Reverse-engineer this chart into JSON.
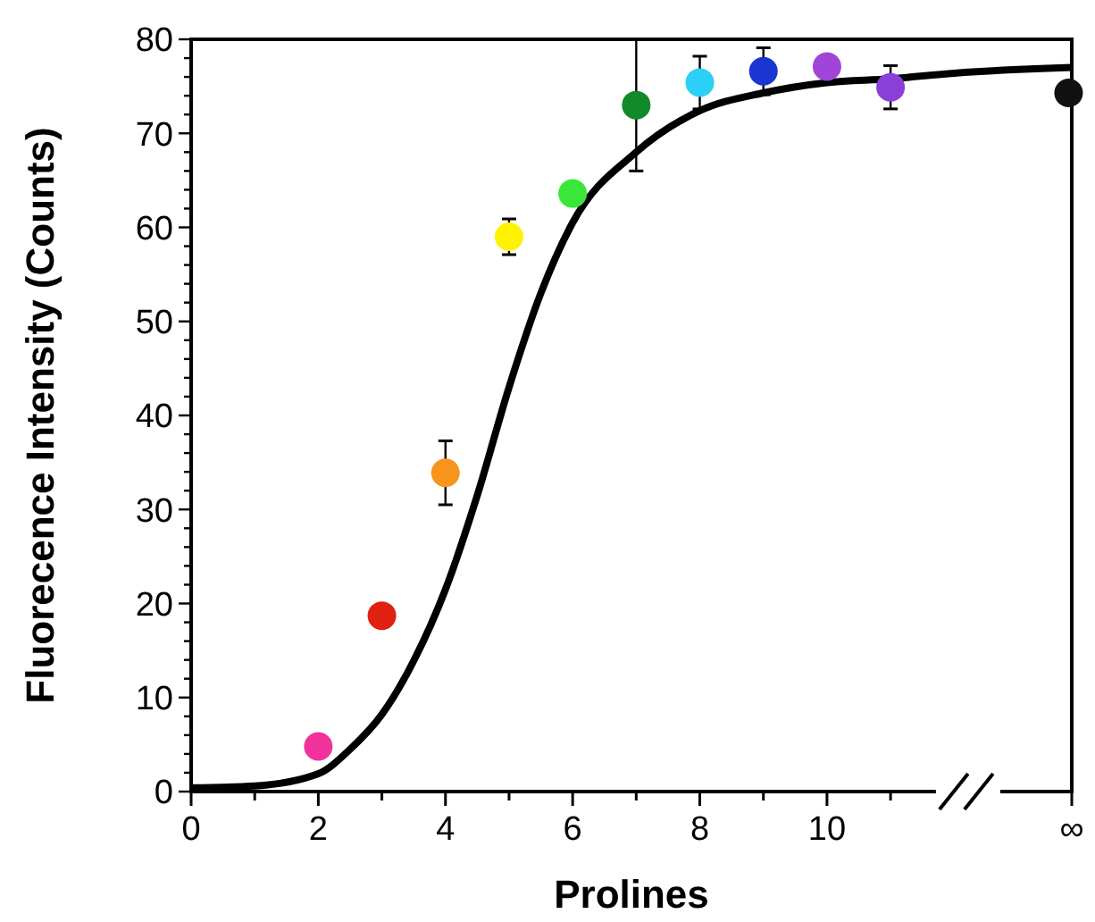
{
  "chart_data": {
    "type": "scatter",
    "xlabel": "Prolines",
    "ylabel": "Fluorecence Intensity (Counts)",
    "xlim": [
      0,
      13.85
    ],
    "ylim": [
      0,
      80
    ],
    "xticks": [
      0,
      {
        "value": 1,
        "label": null
      },
      2,
      {
        "value": 3,
        "label": null
      },
      4,
      {
        "value": 5,
        "label": null
      },
      6,
      {
        "value": 7,
        "label": null
      },
      8,
      {
        "value": 9,
        "label": null
      },
      10,
      {
        "value": 11,
        "label": null
      },
      {
        "value": 13.85,
        "label": "∞"
      }
    ],
    "yticks": [
      0,
      {
        "value": 2,
        "label": null
      },
      {
        "value": 4,
        "label": null
      },
      {
        "value": 6,
        "label": null
      },
      {
        "value": 8,
        "label": null
      },
      10,
      {
        "value": 12,
        "label": null
      },
      {
        "value": 14,
        "label": null
      },
      {
        "value": 16,
        "label": null
      },
      {
        "value": 18,
        "label": null
      },
      20,
      {
        "value": 22,
        "label": null
      },
      {
        "value": 24,
        "label": null
      },
      {
        "value": 26,
        "label": null
      },
      {
        "value": 28,
        "label": null
      },
      30,
      {
        "value": 32,
        "label": null
      },
      {
        "value": 34,
        "label": null
      },
      {
        "value": 36,
        "label": null
      },
      {
        "value": 38,
        "label": null
      },
      40,
      {
        "value": 42,
        "label": null
      },
      {
        "value": 44,
        "label": null
      },
      {
        "value": 46,
        "label": null
      },
      {
        "value": 48,
        "label": null
      },
      50,
      {
        "value": 52,
        "label": null
      },
      {
        "value": 54,
        "label": null
      },
      {
        "value": 56,
        "label": null
      },
      {
        "value": 58,
        "label": null
      },
      60,
      {
        "value": 62,
        "label": null
      },
      {
        "value": 64,
        "label": null
      },
      {
        "value": 66,
        "label": null
      },
      {
        "value": 68,
        "label": null
      },
      70,
      {
        "value": 72,
        "label": null
      },
      {
        "value": 74,
        "label": null
      },
      {
        "value": 76,
        "label": null
      },
      {
        "value": 78,
        "label": null
      },
      80
    ],
    "grid": false,
    "series": [
      {
        "type": "line",
        "color": "#000000",
        "x": [
          0,
          1,
          2,
          2.5,
          3,
          3.5,
          4,
          4.5,
          5,
          5.5,
          6,
          7,
          8,
          9,
          10,
          11,
          12,
          13.85
        ],
        "values": [
          0.4,
          0.6,
          1.9,
          4.5,
          8.2,
          13.9,
          21.5,
          31.5,
          43,
          53,
          60.5,
          68,
          72.4,
          74.3,
          75.4,
          75.8,
          76.4,
          77
        ]
      },
      {
        "marker": "circle",
        "x": [
          2,
          3,
          4,
          5,
          6,
          7,
          8,
          9,
          10,
          11,
          13.8
        ],
        "values": [
          4.8,
          18.7,
          33.9,
          59,
          63.6,
          73,
          75.4,
          76.6,
          77.1,
          74.9,
          74.3
        ],
        "errors": [
          null,
          null,
          3.4,
          1.9,
          null,
          7,
          2.8,
          2.5,
          null,
          2.3,
          null
        ],
        "colors": [
          "#f0329a",
          "#e02010",
          "#f7941d",
          "#fff200",
          "#39e639",
          "#138a2a",
          "#2ad0f5",
          "#1a35d0",
          "#a045d8",
          "#8a3fd8",
          "#111111"
        ]
      }
    ]
  }
}
